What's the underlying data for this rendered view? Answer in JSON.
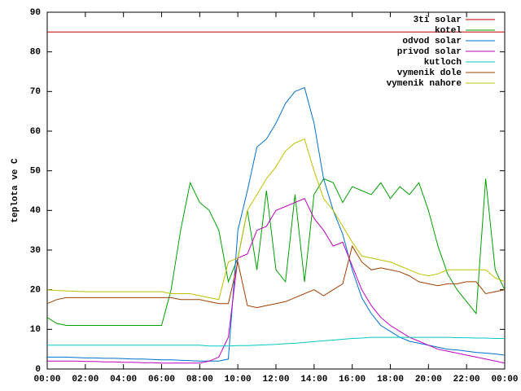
{
  "chart_data": {
    "type": "line",
    "ylabel": "teplota ve C",
    "x": [
      0,
      0.5,
      1,
      1.5,
      2,
      2.5,
      3,
      3.5,
      4,
      4.5,
      5,
      5.5,
      6,
      6.5,
      7,
      7.5,
      8,
      8.5,
      9,
      9.5,
      10,
      10.5,
      11,
      11.5,
      12,
      12.5,
      13,
      13.5,
      14,
      14.5,
      15,
      15.5,
      16,
      16.5,
      17,
      17.5,
      18,
      18.5,
      19,
      19.5,
      20,
      20.5,
      21,
      21.5,
      22,
      22.5,
      23,
      23.5,
      24
    ],
    "xlim": [
      0,
      24
    ],
    "xticks": [
      {
        "value": 0,
        "label": "00:00"
      },
      {
        "value": 2,
        "label": "02:00"
      },
      {
        "value": 4,
        "label": "04:00"
      },
      {
        "value": 6,
        "label": "06:00"
      },
      {
        "value": 8,
        "label": "08:00"
      },
      {
        "value": 10,
        "label": "10:00"
      },
      {
        "value": 12,
        "label": "12:00"
      },
      {
        "value": 14,
        "label": "14:00"
      },
      {
        "value": 16,
        "label": "16:00"
      },
      {
        "value": 18,
        "label": "18:00"
      },
      {
        "value": 20,
        "label": "20:00"
      },
      {
        "value": 22,
        "label": "22:00"
      },
      {
        "value": 24,
        "label": "00:00"
      }
    ],
    "ylim": [
      0,
      90
    ],
    "yticks": [
      0,
      10,
      20,
      30,
      40,
      50,
      60,
      70,
      80,
      90
    ],
    "legend": "top-right",
    "series": [
      {
        "name": "3ti solar",
        "color": "#c00000",
        "values": [
          85,
          85,
          85,
          85,
          85,
          85,
          85,
          85,
          85,
          85,
          85,
          85,
          85,
          85,
          85,
          85,
          85,
          85,
          85,
          85,
          85,
          85,
          85,
          85,
          85,
          85,
          85,
          85,
          85,
          85,
          85,
          85,
          85,
          85,
          85,
          85,
          85,
          85,
          85,
          85,
          85,
          85,
          85,
          85,
          85,
          85,
          85,
          85,
          85
        ]
      },
      {
        "name": "kotel",
        "color": "#00a000",
        "values": [
          13,
          11.5,
          11,
          11,
          11,
          11,
          11,
          11,
          11,
          11,
          11,
          11,
          11,
          20,
          35,
          47,
          42,
          40,
          35,
          22,
          28,
          40,
          25,
          45,
          25,
          22,
          44,
          22,
          44,
          48,
          47,
          42,
          46,
          45,
          44,
          47,
          43,
          46,
          44,
          47,
          40,
          31,
          24,
          20,
          17,
          14,
          48,
          25,
          20
        ]
      },
      {
        "name": "odvod solar",
        "color": "#0070d0",
        "values": [
          3,
          3,
          3,
          2.9,
          2.8,
          2.8,
          2.7,
          2.7,
          2.6,
          2.5,
          2.5,
          2.4,
          2.3,
          2.3,
          2.2,
          2.1,
          2,
          2,
          2,
          2.5,
          35,
          45,
          56,
          58,
          62,
          67,
          70,
          71,
          62,
          48,
          40,
          34,
          25,
          18,
          14,
          11,
          9.5,
          8,
          7,
          6.5,
          6,
          5.5,
          5,
          4.8,
          4.5,
          4.2,
          4,
          3.8,
          3.5
        ]
      },
      {
        "name": "privod solar",
        "color": "#c000c0",
        "values": [
          2,
          2,
          2,
          2,
          1.9,
          1.9,
          1.8,
          1.8,
          1.7,
          1.7,
          1.6,
          1.6,
          1.5,
          1.5,
          1.5,
          1.5,
          1.5,
          2,
          3,
          8,
          28,
          29,
          35,
          36,
          40,
          41,
          42,
          43,
          38,
          35,
          31,
          32,
          26,
          20,
          16,
          13,
          11,
          9.5,
          8,
          7,
          6,
          5,
          4.5,
          4,
          3.5,
          3,
          2.5,
          2,
          1.5
        ]
      },
      {
        "name": "kutloch",
        "color": "#00c8c8",
        "values": [
          6,
          6,
          6,
          6,
          6,
          6,
          6,
          6,
          6,
          6,
          6,
          6,
          6,
          6,
          6,
          6,
          6,
          5.8,
          5.8,
          5.8,
          5.9,
          5.9,
          6,
          6.1,
          6.2,
          6.4,
          6.5,
          6.7,
          6.9,
          7.1,
          7.3,
          7.5,
          7.7,
          7.8,
          8,
          8,
          8,
          8,
          8,
          8,
          8,
          8,
          8,
          7.9,
          7.9,
          7.8,
          7.8,
          7.7,
          7.7
        ]
      },
      {
        "name": "vymenik dole",
        "color": "#a04000",
        "values": [
          16.5,
          17.5,
          18,
          18,
          18,
          18,
          18,
          18,
          18,
          18,
          18,
          18,
          18,
          18,
          17.5,
          17.5,
          17.5,
          17,
          16.5,
          16.5,
          27,
          16,
          15.5,
          16,
          16.5,
          17,
          18,
          19,
          20,
          18.5,
          20,
          21.5,
          31,
          27,
          25,
          25.5,
          25,
          24.5,
          23.5,
          22,
          21.5,
          21,
          21.5,
          21.5,
          22,
          22,
          19,
          19.5,
          20
        ]
      },
      {
        "name": "vymenik nahore",
        "color": "#c0c000",
        "values": [
          20,
          19.8,
          19.7,
          19.6,
          19.5,
          19.5,
          19.5,
          19.5,
          19.5,
          19.5,
          19.5,
          19.5,
          19.5,
          19,
          19,
          19,
          18.5,
          18,
          17.5,
          27,
          28,
          40,
          44,
          48,
          51,
          55,
          57,
          58,
          50,
          43,
          40,
          36,
          32,
          28.5,
          28,
          27.5,
          27,
          26,
          25,
          24,
          23.5,
          24,
          25,
          25,
          25,
          25,
          25,
          23,
          22
        ]
      }
    ]
  }
}
